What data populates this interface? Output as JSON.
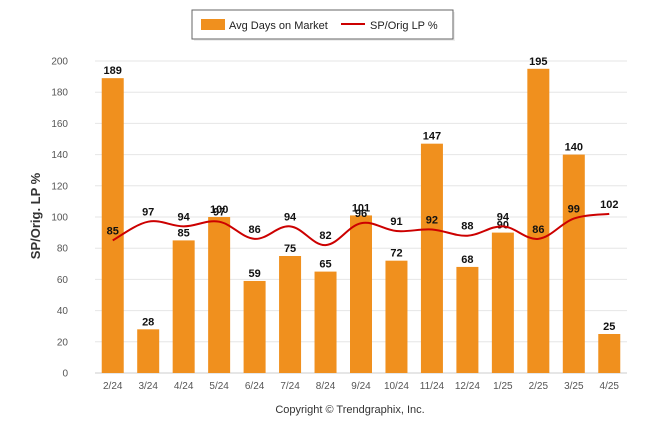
{
  "chart_data": {
    "type": "bar",
    "categories": [
      "2/24",
      "3/24",
      "4/24",
      "5/24",
      "6/24",
      "7/24",
      "8/24",
      "9/24",
      "10/24",
      "11/24",
      "12/24",
      "1/25",
      "2/25",
      "3/25",
      "4/25"
    ],
    "series": [
      {
        "name": "Avg Days on Market",
        "type": "bar",
        "color": "#f0901e",
        "values": [
          189,
          28,
          85,
          100,
          59,
          75,
          65,
          101,
          72,
          147,
          68,
          90,
          195,
          140,
          25
        ]
      },
      {
        "name": "SP/Orig LP %",
        "type": "line",
        "color": "#cc0000",
        "values": [
          85,
          97,
          94,
          97,
          86,
          94,
          82,
          96,
          91,
          92,
          88,
          94,
          86,
          99,
          102
        ]
      }
    ],
    "ylabel": "SP/Orig. LP %",
    "ylim": [
      0,
      200
    ],
    "yticks": [
      0,
      20,
      40,
      60,
      80,
      100,
      120,
      140,
      160,
      180,
      200
    ],
    "grid": true,
    "legend": "top-center"
  },
  "footer": {
    "copyright": "Copyright © Trendgraphix, Inc."
  }
}
